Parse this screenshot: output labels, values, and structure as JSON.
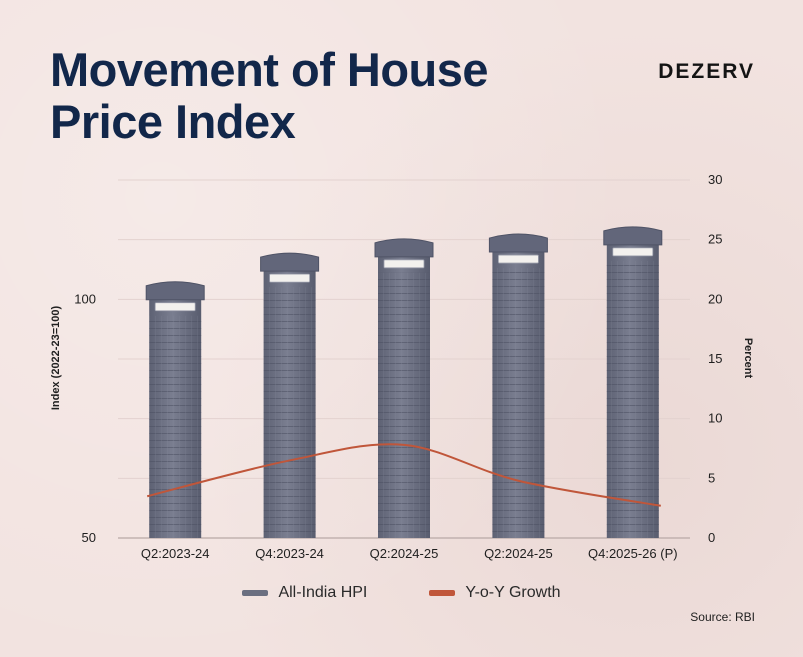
{
  "header": {
    "title": "Movement of House Price Index",
    "brand": "DEZERV"
  },
  "footer": {
    "source": "Source: RBI"
  },
  "colors": {
    "bar": "#6b6f80",
    "line": "#c0563a",
    "title": "#12274a"
  },
  "chart_data": {
    "type": "bar",
    "categories": [
      "Q2:2023-24",
      "Q4:2023-24",
      "Q2:2024-25",
      "Q2:2024-25",
      "Q4:2025-26 (P)"
    ],
    "series": [
      {
        "name": "All-India HPI",
        "type": "bar",
        "axis": "left",
        "values": [
          102,
          108,
          111,
          112,
          113.5
        ]
      },
      {
        "name": "Y-o-Y Growth",
        "type": "line",
        "axis": "right",
        "values": [
          3.5,
          6.5,
          7.8,
          4.8,
          2.7
        ]
      }
    ],
    "ylabel": "Index (2022-23=100)",
    "ylabel_right": "Percent",
    "ylim": [
      50,
      125
    ],
    "y_ticks": [
      "50",
      "100"
    ],
    "ylim_right": [
      0,
      30
    ],
    "y_ticks_right": [
      "0",
      "5",
      "10",
      "15",
      "20",
      "25",
      "30"
    ],
    "grid": true,
    "legend_position": "bottom"
  }
}
